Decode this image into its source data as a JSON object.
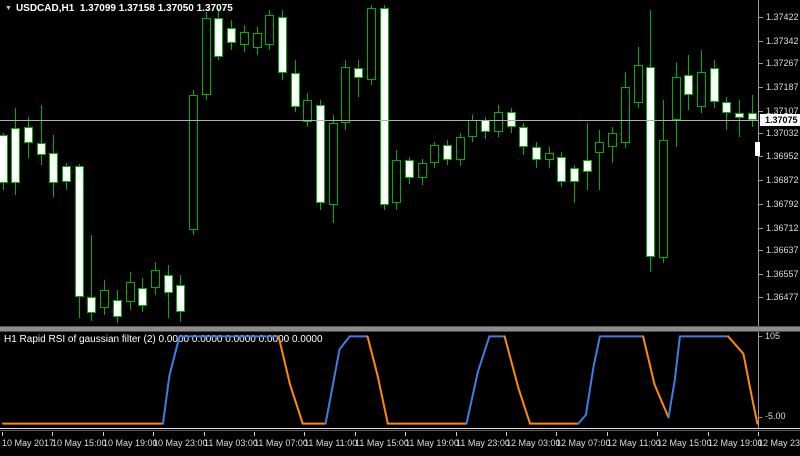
{
  "window": {
    "title_symbol": "USDCAD,H1",
    "title_ohlc": "1.37099 1.37158 1.37050 1.37075"
  },
  "icons": {
    "symbol_dropdown": "▼"
  },
  "colors": {
    "background": "#000000",
    "candle_outline": "#00B000",
    "bear_fill": "#FFFFFF",
    "bull_fill": "#000000",
    "bid_line": "#B0B0B0",
    "indicator_blue": "#3E7EE4",
    "indicator_orange": "#FF8C00",
    "axis_text": "#DCDCDC",
    "separator": "#8C8C8C"
  },
  "price_axis": {
    "labels": [
      "1.37422",
      "1.37342",
      "1.37267",
      "1.37187",
      "1.37107",
      "1.37032",
      "1.36952",
      "1.36872",
      "1.36792",
      "1.36712",
      "1.36637",
      "1.36557",
      "1.36477"
    ],
    "current": {
      "text": "1.37075",
      "price": 1.37075
    }
  },
  "time_axis": {
    "labels": [
      "10 May 2017",
      "10 May 15:00",
      "10 May 19:00",
      "10 May 23:00",
      "11 May 03:00",
      "11 May 07:00",
      "11 May 11:00",
      "11 May 15:00",
      "11 May 19:00",
      "11 May 23:00",
      "12 May 03:00",
      "12 May 07:00",
      "12 May 11:00",
      "12 May 15:00",
      "12 May 19:00",
      "12 May 23:00"
    ]
  },
  "indicator": {
    "label": "H1  Rapid RSI of gaussian filter (2) 0.0000 0.0000 0.0000 0.0000 0.0000",
    "scale_top": "105",
    "scale_bottom": "-5.00"
  },
  "chart_data": {
    "type": "candlestick",
    "title": "USDCAD,H1",
    "symbol": "USDCAD",
    "timeframe": "H1",
    "current_bar": {
      "open": 1.37099,
      "high": 1.37158,
      "low": 1.3705,
      "close": 1.37075
    },
    "bid": 1.37075,
    "ylim": [
      1.3638,
      1.3748
    ],
    "y_tick_labels": [
      1.37422,
      1.37342,
      1.37267,
      1.37187,
      1.37107,
      1.37032,
      1.36952,
      1.36872,
      1.36792,
      1.36712,
      1.36637,
      1.36557,
      1.36477
    ],
    "x_tick_labels": [
      "10 May 2017",
      "10 May 15:00",
      "10 May 19:00",
      "10 May 23:00",
      "11 May 03:00",
      "11 May 07:00",
      "11 May 11:00",
      "11 May 15:00",
      "11 May 19:00",
      "11 May 23:00",
      "12 May 03:00",
      "12 May 07:00",
      "12 May 11:00",
      "12 May 15:00",
      "12 May 19:00",
      "12 May 23:00"
    ],
    "bars_per_x_tick": 4,
    "candles_columns": [
      "open",
      "high",
      "low",
      "close"
    ],
    "candles": [
      [
        1.37025,
        1.37031,
        1.36839,
        1.36863
      ],
      [
        1.37048,
        1.37116,
        1.36822,
        1.36863
      ],
      [
        1.37052,
        1.37085,
        1.36947,
        1.36998
      ],
      [
        1.36998,
        1.37126,
        1.36923,
        1.36957
      ],
      [
        1.36964,
        1.37025,
        1.36815,
        1.36863
      ],
      [
        1.3692,
        1.3693,
        1.36839,
        1.36866
      ],
      [
        1.3692,
        1.36927,
        1.36407,
        1.36478
      ],
      [
        1.36478,
        1.36687,
        1.36397,
        1.36424
      ],
      [
        1.36441,
        1.36535,
        1.36417,
        1.36502
      ],
      [
        1.36468,
        1.36502,
        1.3639,
        1.3641
      ],
      [
        1.36461,
        1.36562,
        1.36434,
        1.36528
      ],
      [
        1.36508,
        1.36542,
        1.36427,
        1.36448
      ],
      [
        1.36508,
        1.36596,
        1.36485,
        1.36569
      ],
      [
        1.36552,
        1.36586,
        1.36407,
        1.36491
      ],
      [
        1.36518,
        1.36552,
        1.36394,
        1.36427
      ],
      [
        1.36704,
        1.37176,
        1.36687,
        1.3716
      ],
      [
        1.3716,
        1.3744,
        1.37143,
        1.37419
      ],
      [
        1.37419,
        1.37453,
        1.37278,
        1.37288
      ],
      [
        1.37386,
        1.37413,
        1.37311,
        1.37335
      ],
      [
        1.37328,
        1.37396,
        1.37305,
        1.37372
      ],
      [
        1.37318,
        1.3739,
        1.37294,
        1.37369
      ],
      [
        1.37328,
        1.37446,
        1.37311,
        1.37429
      ],
      [
        1.37423,
        1.37446,
        1.3721,
        1.37234
      ],
      [
        1.37234,
        1.37278,
        1.37102,
        1.37119
      ],
      [
        1.37068,
        1.37166,
        1.37052,
        1.37143
      ],
      [
        1.37126,
        1.37143,
        1.36771,
        1.36795
      ],
      [
        1.36788,
        1.37092,
        1.36728,
        1.37065
      ],
      [
        1.37065,
        1.37278,
        1.37041,
        1.37254
      ],
      [
        1.37251,
        1.37278,
        1.37153,
        1.37217
      ],
      [
        1.3721,
        1.37463,
        1.37193,
        1.37453
      ],
      [
        1.37453,
        1.37463,
        1.36771,
        1.36788
      ],
      [
        1.36795,
        1.36974,
        1.36771,
        1.3694
      ],
      [
        1.3694,
        1.3695,
        1.3686,
        1.3688
      ],
      [
        1.3688,
        1.36945,
        1.36856,
        1.3693
      ],
      [
        1.3693,
        1.37001,
        1.36913,
        1.36991
      ],
      [
        1.36991,
        1.37008,
        1.36923,
        1.3694
      ],
      [
        1.3694,
        1.37031,
        1.3692,
        1.37018
      ],
      [
        1.37018,
        1.37092,
        1.37001,
        1.37075
      ],
      [
        1.37075,
        1.37085,
        1.37011,
        1.37035
      ],
      [
        1.37035,
        1.37126,
        1.37018,
        1.37102
      ],
      [
        1.37102,
        1.37116,
        1.37031,
        1.37052
      ],
      [
        1.37052,
        1.37065,
        1.36957,
        1.36984
      ],
      [
        1.36984,
        1.37001,
        1.36913,
        1.3694
      ],
      [
        1.3694,
        1.36984,
        1.36913,
        1.36964
      ],
      [
        1.3695,
        1.36967,
        1.36849,
        1.36866
      ],
      [
        1.36913,
        1.36923,
        1.36795,
        1.36866
      ],
      [
        1.3694,
        1.37065,
        1.36839,
        1.369
      ],
      [
        1.36964,
        1.37041,
        1.36839,
        1.37001
      ],
      [
        1.36984,
        1.37052,
        1.3693,
        1.37031
      ],
      [
        1.36998,
        1.37237,
        1.36981,
        1.37186
      ],
      [
        1.37133,
        1.37321,
        1.37116,
        1.37261
      ],
      [
        1.37254,
        1.37446,
        1.36562,
        1.36613
      ],
      [
        1.3661,
        1.37143,
        1.36593,
        1.37008
      ],
      [
        1.37075,
        1.37271,
        1.36984,
        1.3722
      ],
      [
        1.37227,
        1.37294,
        1.37109,
        1.3716
      ],
      [
        1.37119,
        1.37311,
        1.37099,
        1.37237
      ],
      [
        1.37251,
        1.37278,
        1.37116,
        1.37136
      ],
      [
        1.37136,
        1.37153,
        1.37041,
        1.37099
      ],
      [
        1.37099,
        1.37143,
        1.37018,
        1.37082
      ],
      [
        1.37099,
        1.37158,
        1.3705,
        1.37075
      ]
    ],
    "indicator": {
      "name": "Rapid RSI of gaussian filter",
      "params": "(2)",
      "displayed_values": [
        "0.0000",
        "0.0000",
        "0.0000",
        "0.0000",
        "0.0000"
      ],
      "scale_max": 105,
      "scale_min": -5,
      "segments_columns": [
        "bar_index",
        "value"
      ],
      "segments": [
        {
          "color": "orange",
          "points": [
            [
              0,
              0
            ],
            [
              12.6,
              0
            ]
          ]
        },
        {
          "color": "blue",
          "points": [
            [
              12.6,
              0
            ],
            [
              13.1,
              55
            ],
            [
              13.9,
              100
            ]
          ]
        },
        {
          "color": "blue",
          "points": [
            [
              13.9,
              100
            ],
            [
              21.7,
              100
            ]
          ]
        },
        {
          "color": "orange",
          "points": [
            [
              21.7,
              100
            ],
            [
              22.6,
              45
            ],
            [
              23.6,
              0
            ]
          ]
        },
        {
          "color": "orange",
          "points": [
            [
              23.6,
              0
            ],
            [
              25.4,
              0
            ]
          ]
        },
        {
          "color": "blue",
          "points": [
            [
              25.4,
              0
            ],
            [
              26.5,
              85
            ],
            [
              27.3,
              100
            ]
          ]
        },
        {
          "color": "blue",
          "points": [
            [
              27.3,
              100
            ],
            [
              28.7,
              100
            ]
          ]
        },
        {
          "color": "orange",
          "points": [
            [
              28.7,
              100
            ],
            [
              29.5,
              55
            ],
            [
              30.3,
              0
            ]
          ]
        },
        {
          "color": "orange",
          "points": [
            [
              30.3,
              0
            ],
            [
              36.5,
              0
            ]
          ]
        },
        {
          "color": "blue",
          "points": [
            [
              36.5,
              0
            ],
            [
              37.4,
              60
            ],
            [
              38.3,
              100
            ]
          ]
        },
        {
          "color": "blue",
          "points": [
            [
              38.3,
              100
            ],
            [
              39.5,
              100
            ]
          ]
        },
        {
          "color": "orange",
          "points": [
            [
              39.5,
              100
            ],
            [
              40.6,
              40
            ],
            [
              41.5,
              0
            ]
          ]
        },
        {
          "color": "orange",
          "points": [
            [
              41.5,
              0
            ],
            [
              45.3,
              0
            ]
          ]
        },
        {
          "color": "blue",
          "points": [
            [
              45.3,
              0
            ],
            [
              45.9,
              10
            ],
            [
              46.5,
              65
            ],
            [
              47.0,
              100
            ]
          ]
        },
        {
          "color": "blue",
          "points": [
            [
              47.0,
              100
            ],
            [
              50.4,
              100
            ]
          ]
        },
        {
          "color": "orange",
          "points": [
            [
              50.4,
              100
            ],
            [
              51.3,
              45
            ],
            [
              52.4,
              7
            ]
          ]
        },
        {
          "color": "blue",
          "points": [
            [
              52.4,
              7
            ],
            [
              52.9,
              50
            ],
            [
              53.3,
              100
            ]
          ]
        },
        {
          "color": "blue",
          "points": [
            [
              53.3,
              100
            ],
            [
              57.1,
              100
            ]
          ]
        },
        {
          "color": "orange",
          "points": [
            [
              57.1,
              100
            ],
            [
              58.3,
              80
            ],
            [
              59.0,
              28
            ],
            [
              59.4,
              0
            ]
          ]
        }
      ]
    }
  }
}
